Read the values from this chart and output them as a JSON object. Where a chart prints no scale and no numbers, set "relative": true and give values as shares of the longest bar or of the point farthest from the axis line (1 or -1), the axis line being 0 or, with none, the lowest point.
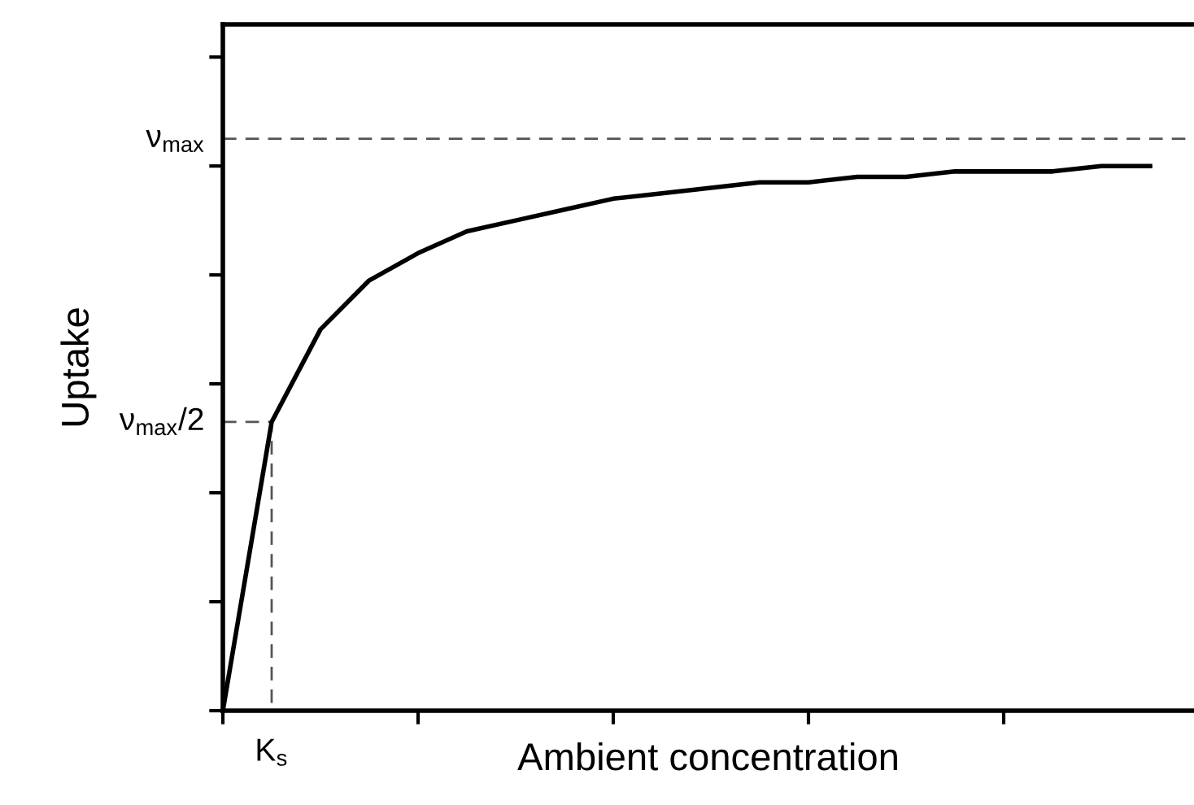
{
  "chart_data": {
    "type": "line",
    "relative": true,
    "xlabel": "Ambient concentration",
    "ylabel": "Uptake",
    "categories": [
      null,
      null,
      null,
      null,
      null,
      null,
      null,
      null,
      null,
      null,
      null,
      null,
      null,
      null,
      null,
      null,
      null,
      null,
      null,
      null
    ],
    "series": [
      {
        "color": "#000000",
        "values": [
          0,
          0.53,
          0.7,
          0.79,
          0.84,
          0.88,
          0.9,
          0.92,
          0.94,
          0.95,
          0.96,
          0.97,
          0.97,
          0.98,
          0.98,
          0.99,
          0.99,
          0.99,
          1,
          1
        ]
      }
    ],
    "ref_lines": [
      {
        "axis": "y",
        "value": 1.05,
        "label": "ν$_{max}$",
        "color": "#555555",
        "line_style": "dashed"
      },
      {
        "axis": "y",
        "value": 0.53,
        "label": "ν$_{max}$/2",
        "color": "#555555",
        "line_style": "dashed"
      }
    ],
    "annotations": [
      "K$_{s}$"
    ],
    "line_style": "solid",
    "grid": false,
    "legend": false,
    "marker": "none"
  }
}
